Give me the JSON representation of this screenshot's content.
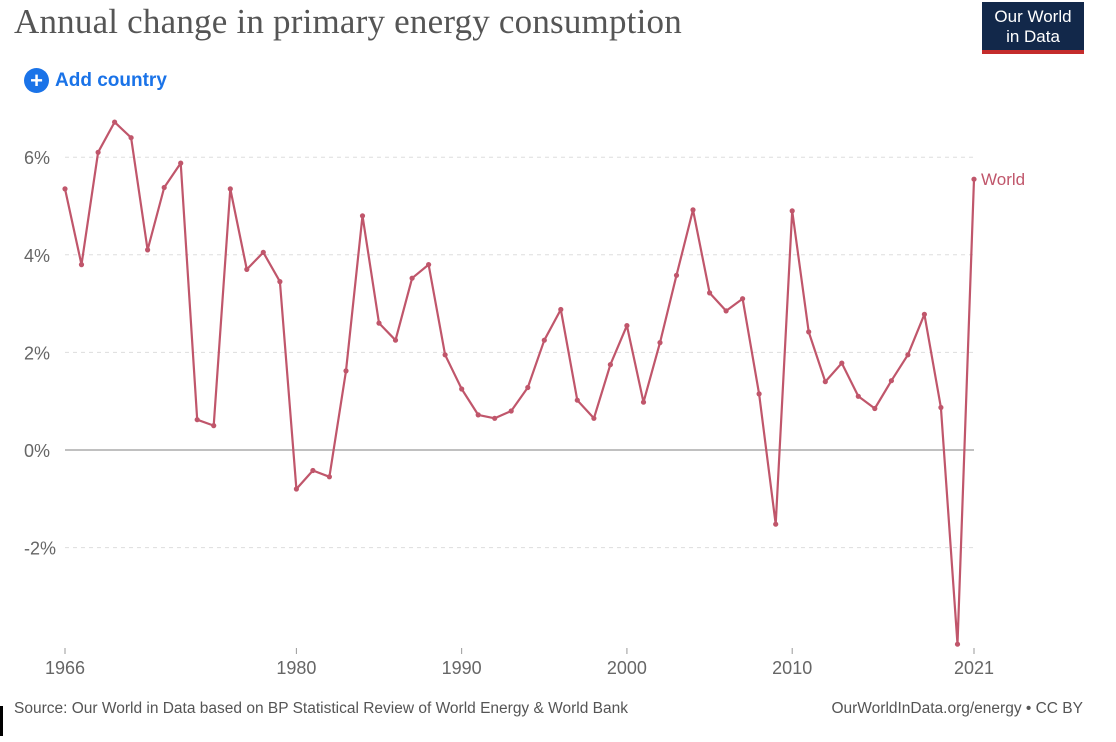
{
  "header": {
    "title": "Annual change in primary energy consumption",
    "logo_line1": "Our World",
    "logo_line2": "in Data",
    "add_country_label": "Add country"
  },
  "footer": {
    "source": "Source: Our World in Data based on BP Statistical Review of World Energy & World Bank",
    "license": "OurWorldInData.org/energy • CC BY"
  },
  "colors": {
    "series": "#c0566b",
    "logo_bg": "#12284a",
    "logo_accent": "#c42c2c",
    "link": "#1a73e8"
  },
  "chart_data": {
    "type": "line",
    "title": "Annual change in primary energy consumption",
    "xlabel": "",
    "ylabel": "",
    "xlim": [
      1966,
      2021
    ],
    "ylim": [
      -4,
      6.8
    ],
    "y_ticks": [
      -2,
      0,
      2,
      4,
      6
    ],
    "y_tick_labels": [
      "-2%",
      "0%",
      "2%",
      "4%",
      "6%"
    ],
    "x_ticks": [
      1966,
      1980,
      1990,
      2000,
      2010,
      2021
    ],
    "x_tick_labels": [
      "1966",
      "1980",
      "1990",
      "2000",
      "2010",
      "2021"
    ],
    "grid": "horizontal dashed",
    "series": [
      {
        "name": "World",
        "color": "#c0566b",
        "x": [
          1966,
          1967,
          1968,
          1969,
          1970,
          1971,
          1972,
          1973,
          1974,
          1975,
          1976,
          1977,
          1978,
          1979,
          1980,
          1981,
          1982,
          1983,
          1984,
          1985,
          1986,
          1987,
          1988,
          1989,
          1990,
          1991,
          1992,
          1993,
          1994,
          1995,
          1996,
          1997,
          1998,
          1999,
          2000,
          2001,
          2002,
          2003,
          2004,
          2005,
          2006,
          2007,
          2008,
          2009,
          2010,
          2011,
          2012,
          2013,
          2014,
          2015,
          2016,
          2017,
          2018,
          2019,
          2020,
          2021
        ],
        "values": [
          5.35,
          3.8,
          6.1,
          6.72,
          6.4,
          4.1,
          5.38,
          5.88,
          0.62,
          0.5,
          5.35,
          3.7,
          4.05,
          3.45,
          -0.8,
          -0.42,
          -0.55,
          1.62,
          4.8,
          2.6,
          2.25,
          3.52,
          3.8,
          1.95,
          1.25,
          0.72,
          0.65,
          0.8,
          1.28,
          2.25,
          2.88,
          1.02,
          0.65,
          1.75,
          2.55,
          0.98,
          2.2,
          3.58,
          4.92,
          3.22,
          2.85,
          3.1,
          1.15,
          -1.52,
          4.9,
          2.42,
          1.4,
          1.78,
          1.1,
          0.85,
          1.42,
          1.95,
          2.78,
          0.87,
          -3.98,
          5.55
        ]
      }
    ]
  }
}
